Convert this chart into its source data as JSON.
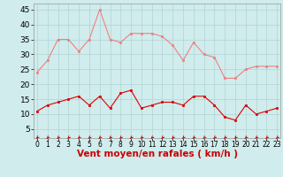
{
  "x": [
    0,
    1,
    2,
    3,
    4,
    5,
    6,
    7,
    8,
    9,
    10,
    11,
    12,
    13,
    14,
    15,
    16,
    17,
    18,
    19,
    20,
    21,
    22,
    23
  ],
  "rafales": [
    24,
    28,
    35,
    35,
    31,
    35,
    45,
    35,
    34,
    37,
    37,
    37,
    36,
    33,
    28,
    34,
    30,
    29,
    22,
    22,
    25,
    26,
    26,
    26
  ],
  "moyen": [
    11,
    13,
    14,
    15,
    16,
    13,
    16,
    12,
    17,
    18,
    12,
    13,
    14,
    14,
    13,
    16,
    16,
    13,
    9,
    8,
    13,
    10,
    11,
    12
  ],
  "line_color_rafales": "#f08080",
  "line_color_moyen": "#dd0000",
  "bg_color": "#d0ecec",
  "grid_color": "#b0d4d4",
  "xlabel": "Vent moyen/en rafales ( km/h )",
  "ylabel_ticks": [
    5,
    10,
    15,
    20,
    25,
    30,
    35,
    40,
    45
  ],
  "ylim": [
    2,
    47
  ],
  "xlim": [
    -0.3,
    23.3
  ],
  "xlabel_color": "#cc0000",
  "xlabel_fontsize": 7.5,
  "tick_fontsize": 6.5,
  "arrow_color": "#cc0000",
  "title_color": "#cc0000"
}
